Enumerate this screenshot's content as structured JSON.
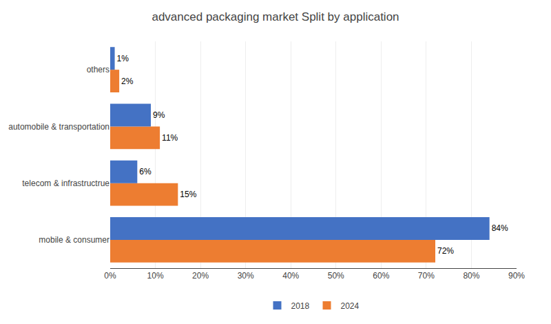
{
  "chart_data": {
    "type": "bar",
    "orientation": "horizontal",
    "title": "advanced packaging market Split by application",
    "categories": [
      "mobile & consumer",
      "telecom & infrastructrue",
      "automobile & transportation",
      "others"
    ],
    "series": [
      {
        "name": "2018",
        "color": "#4472C4",
        "values": [
          84,
          6,
          9,
          1
        ],
        "value_labels": [
          "84%",
          "6%",
          "9%",
          "1%"
        ]
      },
      {
        "name": "2024",
        "color": "#ED7D31",
        "values": [
          72,
          15,
          11,
          2
        ],
        "value_labels": [
          "72%",
          "15%",
          "11%",
          "2%"
        ]
      }
    ],
    "xlim": [
      0,
      90
    ],
    "xticks": [
      {
        "value": 0,
        "label": "0%"
      },
      {
        "value": 10,
        "label": "10%"
      },
      {
        "value": 20,
        "label": "20%"
      },
      {
        "value": 30,
        "label": "30%"
      },
      {
        "value": 40,
        "label": "40%"
      },
      {
        "value": 50,
        "label": "50%"
      },
      {
        "value": 60,
        "label": "60%"
      },
      {
        "value": 70,
        "label": "70%"
      },
      {
        "value": 80,
        "label": "80%"
      },
      {
        "value": 90,
        "label": "90%"
      }
    ],
    "grid": true,
    "legend": "bottom",
    "data_labels": true
  }
}
